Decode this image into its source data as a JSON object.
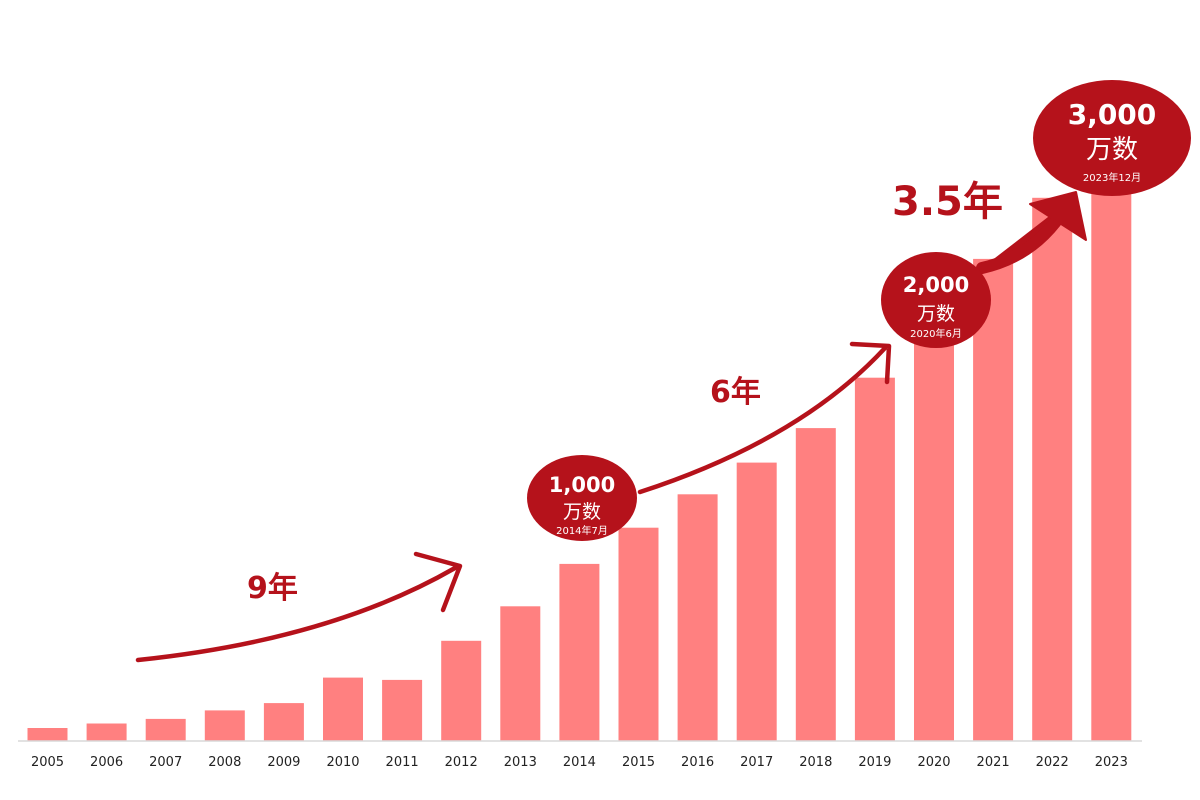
{
  "chart_data": {
    "type": "bar",
    "title": "",
    "xlabel": "",
    "ylabel": "",
    "categories": [
      "2005",
      "2006",
      "2007",
      "2008",
      "2009",
      "2010",
      "2011",
      "2012",
      "2013",
      "2014",
      "2015",
      "2016",
      "2017",
      "2018",
      "2019",
      "2020",
      "2021",
      "2022",
      "2023"
    ],
    "values": [
      115,
      155,
      195,
      270,
      335,
      560,
      540,
      885,
      1190,
      1565,
      1885,
      2180,
      2460,
      2765,
      3210,
      3700,
      4260,
      4800,
      5180
    ],
    "ylim": [
      0,
      5620
    ],
    "grid": false,
    "bar_color": "#ff8080",
    "accent_color": "#b5121b",
    "milestones": [
      {
        "value": "1,000",
        "unit": "万数",
        "date": "2014年7月",
        "year": "2014"
      },
      {
        "value": "2,000",
        "unit": "万数",
        "date": "2020年6月",
        "year": "2020"
      },
      {
        "value": "3,000",
        "unit": "万数",
        "date": "2023年12月",
        "year": "2023"
      }
    ],
    "intervals": [
      {
        "label": "9年",
        "from": "2007",
        "to": "2012"
      },
      {
        "label": "6年",
        "from": "2014",
        "to": "2019"
      },
      {
        "label": "3.5年",
        "from": "2020",
        "to": "2023"
      }
    ]
  }
}
